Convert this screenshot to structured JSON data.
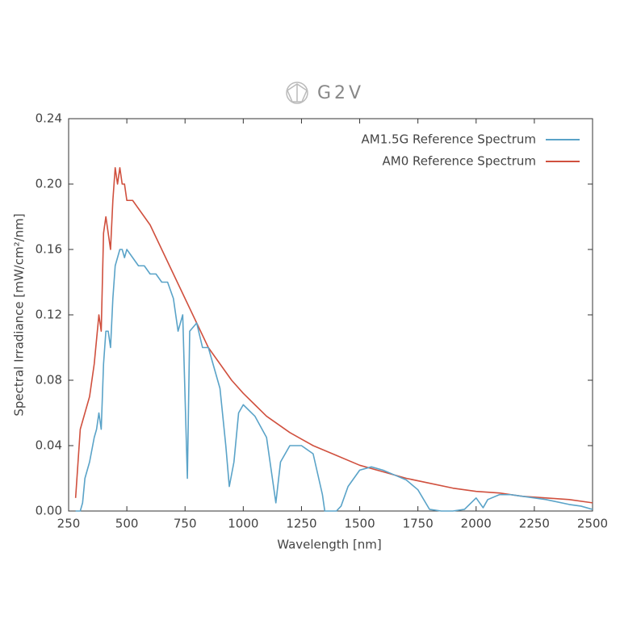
{
  "chart_data": {
    "type": "line",
    "title": "G2V",
    "xlabel": "Wavelength [nm]",
    "ylabel": "Spectral Irradiance [mW/cm²/nm]",
    "xlim": [
      250,
      2500
    ],
    "ylim": [
      0,
      0.24
    ],
    "xticks": [
      250,
      500,
      750,
      1000,
      1250,
      1500,
      1750,
      2000,
      2250,
      2500
    ],
    "yticks": [
      {
        "value": 0,
        "label": "0.00"
      },
      {
        "value": 0.04,
        "label": "0.04"
      },
      {
        "value": 0.08,
        "label": "0.08"
      },
      {
        "value": 0.12,
        "label": "0.12"
      },
      {
        "value": 0.16,
        "label": "0.16"
      },
      {
        "value": 0.2,
        "label": "0.20"
      },
      {
        "value": 0.24,
        "label": "0.24"
      }
    ],
    "legend": "upper right",
    "series": [
      {
        "name": "AM1.5G Reference Spectrum",
        "color": "#5aa3c8",
        "x": [
          280,
          300,
          310,
          320,
          340,
          360,
          370,
          380,
          390,
          400,
          410,
          420,
          430,
          440,
          450,
          460,
          470,
          480,
          490,
          500,
          525,
          550,
          575,
          600,
          625,
          650,
          675,
          700,
          720,
          740,
          760,
          770,
          800,
          825,
          850,
          900,
          925,
          940,
          960,
          980,
          1000,
          1050,
          1100,
          1125,
          1140,
          1160,
          1200,
          1250,
          1300,
          1340,
          1350,
          1400,
          1420,
          1450,
          1500,
          1550,
          1600,
          1650,
          1700,
          1750,
          1800,
          1850,
          1900,
          1950,
          2000,
          2030,
          2050,
          2100,
          2150,
          2200,
          2300,
          2400,
          2450,
          2500
        ],
        "values": [
          0,
          0,
          0.005,
          0.02,
          0.03,
          0.045,
          0.05,
          0.06,
          0.05,
          0.09,
          0.11,
          0.11,
          0.1,
          0.13,
          0.15,
          0.155,
          0.16,
          0.16,
          0.155,
          0.16,
          0.155,
          0.15,
          0.15,
          0.145,
          0.145,
          0.14,
          0.14,
          0.13,
          0.11,
          0.12,
          0.02,
          0.11,
          0.115,
          0.1,
          0.1,
          0.075,
          0.04,
          0.015,
          0.03,
          0.06,
          0.065,
          0.058,
          0.045,
          0.02,
          0.005,
          0.03,
          0.04,
          0.04,
          0.035,
          0.01,
          0,
          0,
          0.003,
          0.015,
          0.025,
          0.027,
          0.025,
          0.022,
          0.019,
          0.013,
          0.001,
          0,
          0,
          0.001,
          0.008,
          0.002,
          0.007,
          0.01,
          0.01,
          0.009,
          0.007,
          0.004,
          0.003,
          0.001
        ]
      },
      {
        "name": "AM0 Reference Spectrum",
        "color": "#d0503e",
        "x": [
          280,
          300,
          320,
          340,
          360,
          380,
          390,
          400,
          410,
          420,
          430,
          440,
          450,
          460,
          470,
          480,
          490,
          500,
          525,
          550,
          575,
          600,
          650,
          700,
          750,
          800,
          850,
          900,
          950,
          1000,
          1050,
          1100,
          1150,
          1200,
          1250,
          1300,
          1400,
          1500,
          1600,
          1700,
          1800,
          1900,
          2000,
          2100,
          2200,
          2300,
          2400,
          2500
        ],
        "values": [
          0.008,
          0.05,
          0.06,
          0.07,
          0.09,
          0.12,
          0.11,
          0.17,
          0.18,
          0.17,
          0.16,
          0.19,
          0.21,
          0.2,
          0.21,
          0.2,
          0.2,
          0.19,
          0.19,
          0.185,
          0.18,
          0.175,
          0.16,
          0.145,
          0.13,
          0.115,
          0.1,
          0.09,
          0.08,
          0.072,
          0.065,
          0.058,
          0.053,
          0.048,
          0.044,
          0.04,
          0.034,
          0.028,
          0.024,
          0.02,
          0.017,
          0.014,
          0.012,
          0.011,
          0.009,
          0.008,
          0.007,
          0.005
        ]
      }
    ]
  }
}
